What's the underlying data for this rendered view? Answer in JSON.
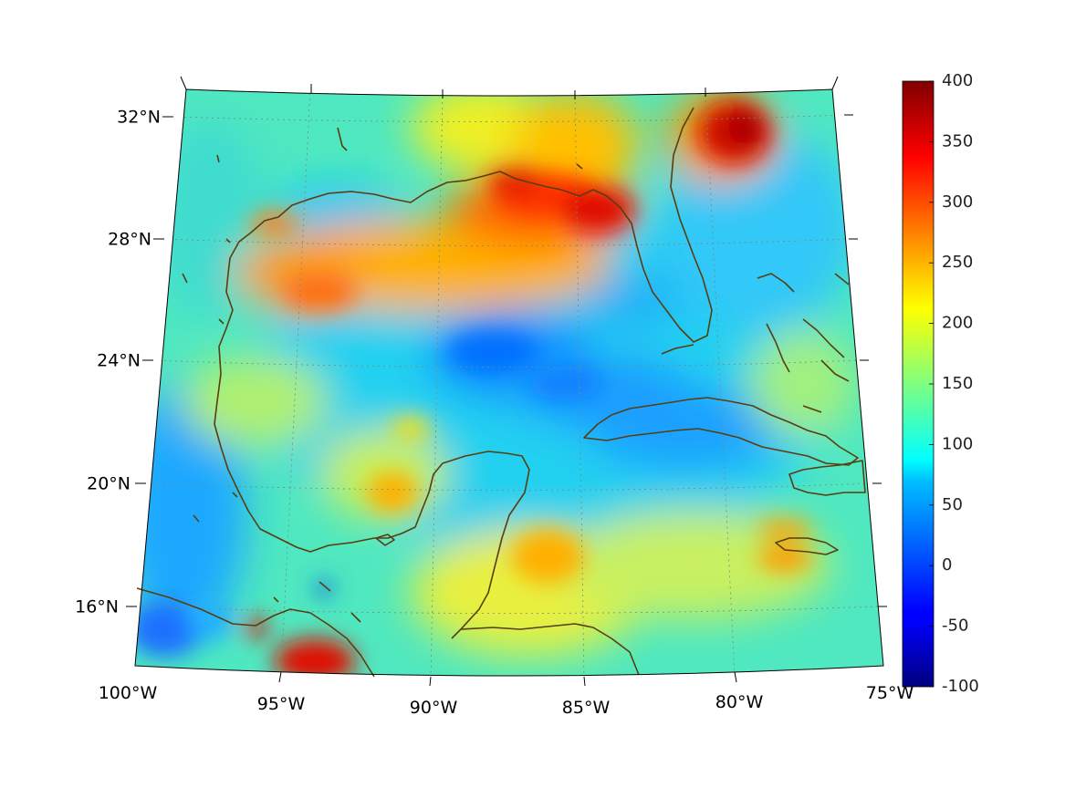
{
  "map": {
    "lat_labels": [
      "32°N",
      "28°N",
      "24°N",
      "20°N",
      "16°N"
    ],
    "lon_labels": [
      "100°W",
      "95°W",
      "90°W",
      "85°W",
      "80°W",
      "75°W"
    ]
  },
  "colorbar": {
    "ticks": [
      "400",
      "350",
      "300",
      "250",
      "200",
      "150",
      "100",
      "50",
      "0",
      "-50",
      "-100"
    ],
    "min": -100,
    "max": 400,
    "colormap": "jet"
  },
  "colors": {
    "coastline": "#5a3d10",
    "gridline": "#7a8a7a"
  }
}
